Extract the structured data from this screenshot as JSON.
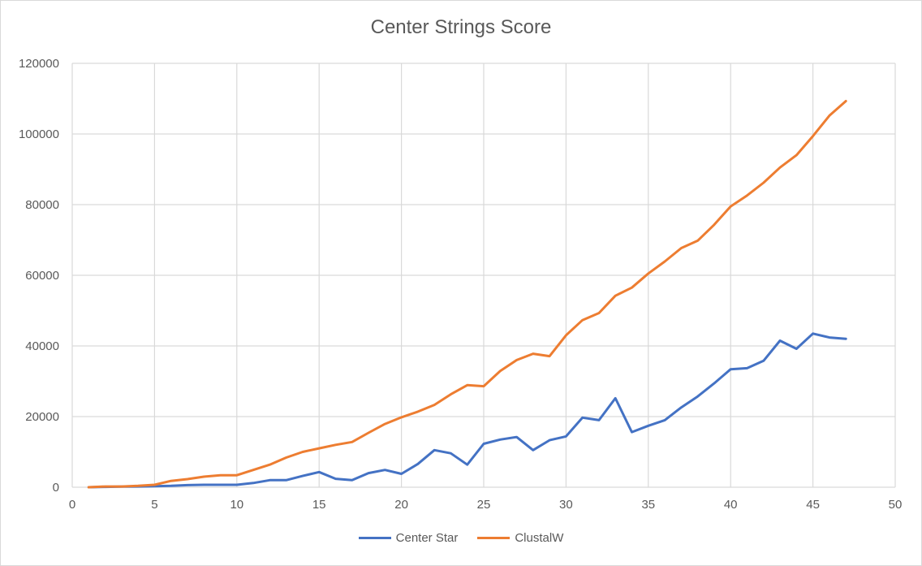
{
  "chart_data": {
    "type": "line",
    "title": "Center Strings Score",
    "xlabel": "",
    "ylabel": "",
    "xlim": [
      0,
      50
    ],
    "ylim": [
      0,
      120000
    ],
    "x_ticks": [
      0,
      5,
      10,
      15,
      20,
      25,
      30,
      35,
      40,
      45,
      50
    ],
    "y_ticks": [
      0,
      20000,
      40000,
      60000,
      80000,
      100000,
      120000
    ],
    "grid": true,
    "legend_position": "bottom",
    "x": [
      1,
      2,
      3,
      4,
      5,
      6,
      7,
      8,
      9,
      10,
      11,
      12,
      13,
      14,
      15,
      16,
      17,
      18,
      19,
      20,
      21,
      22,
      23,
      24,
      25,
      26,
      27,
      28,
      29,
      30,
      31,
      32,
      33,
      34,
      35,
      36,
      37,
      38,
      39,
      40,
      41,
      42,
      43,
      44,
      45,
      46,
      47
    ],
    "series": [
      {
        "name": "Center Star",
        "color": "#4472C4",
        "values": [
          0,
          100,
          150,
          200,
          300,
          400,
          600,
          700,
          700,
          700,
          1200,
          2000,
          2000,
          3200,
          4300,
          2400,
          2000,
          4000,
          4900,
          3800,
          6600,
          10500,
          9600,
          6400,
          12300,
          13500,
          14200,
          10500,
          13300,
          14400,
          19700,
          19000,
          25200,
          15600,
          17400,
          19000,
          22600,
          25700,
          29400,
          33400,
          33700,
          35800,
          41500,
          39200,
          43500,
          42400,
          42000
        ]
      },
      {
        "name": "ClustalW",
        "color": "#ED7D31",
        "values": [
          0,
          200,
          200,
          400,
          700,
          1800,
          2300,
          3000,
          3400,
          3400,
          4900,
          6400,
          8400,
          10000,
          11000,
          12000,
          12800,
          15400,
          17900,
          19800,
          21400,
          23300,
          26300,
          28900,
          28600,
          32900,
          36000,
          37800,
          37100,
          43000,
          47300,
          49300,
          54200,
          56500,
          60500,
          63900,
          67700,
          69800,
          74300,
          79500,
          82600,
          86200,
          90500,
          94000,
          99400,
          105200,
          109300
        ]
      }
    ]
  }
}
